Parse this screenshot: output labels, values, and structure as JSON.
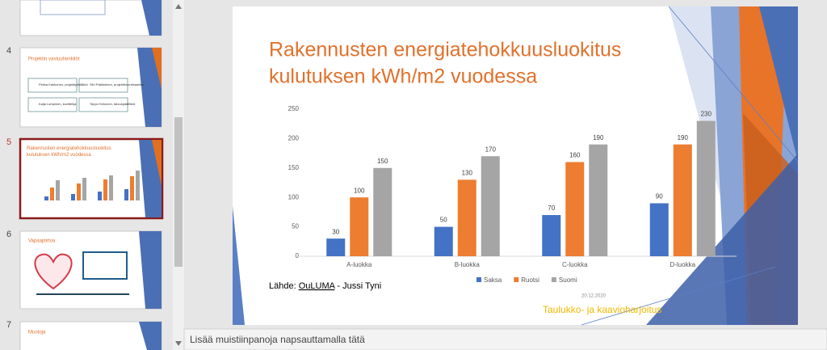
{
  "thumbnails": [
    {
      "number": "4",
      "title": "Projektin vastuuhenkilöt",
      "people": [
        "Pekka Kakkonen, projektipäällikkö",
        "Siiri Pääkkönen, projektikoordinaattori",
        "Kaija Lampinen, kuvittelija",
        "Teppo Kekonen, talouspäällikkö"
      ]
    },
    {
      "number": "5",
      "title": "Rakennusten energiatehokkuusluokitus kulutuksen kWh/m2 vuodessa"
    },
    {
      "number": "6",
      "title": "Vapaapiirtoa"
    },
    {
      "number": "7",
      "title": "Muotoja"
    }
  ],
  "slide": {
    "title_lines": [
      "Rakennusten energiatehokkuusluokitus",
      "kulutuksen kWh/m2 vuodessa"
    ],
    "chart_data": {
      "type": "bar",
      "categories": [
        "A-luokka",
        "B-luokka",
        "C-luokka",
        "D-luokka"
      ],
      "series": [
        {
          "name": "Saksa",
          "color": "#4472c4",
          "values": [
            30,
            50,
            70,
            90
          ]
        },
        {
          "name": "Ruotsi",
          "color": "#ed7d31",
          "values": [
            100,
            130,
            160,
            190
          ]
        },
        {
          "name": "Suomi",
          "color": "#a5a5a5",
          "values": [
            150,
            170,
            190,
            230
          ]
        }
      ],
      "ylim": [
        0,
        250
      ],
      "yticks": [
        0,
        50,
        100,
        150,
        200,
        250
      ],
      "grid": false,
      "legend": "bottom"
    },
    "source_prefix": "Lähde: ",
    "source_link": "OuLUMA",
    "source_suffix": " - Jussi Tyni",
    "date": "20.12.2020",
    "footer": "Taulukko- ja kaavioharjoitus"
  },
  "notes": "Lisää muistiinpanoja napsauttamalla tätä"
}
